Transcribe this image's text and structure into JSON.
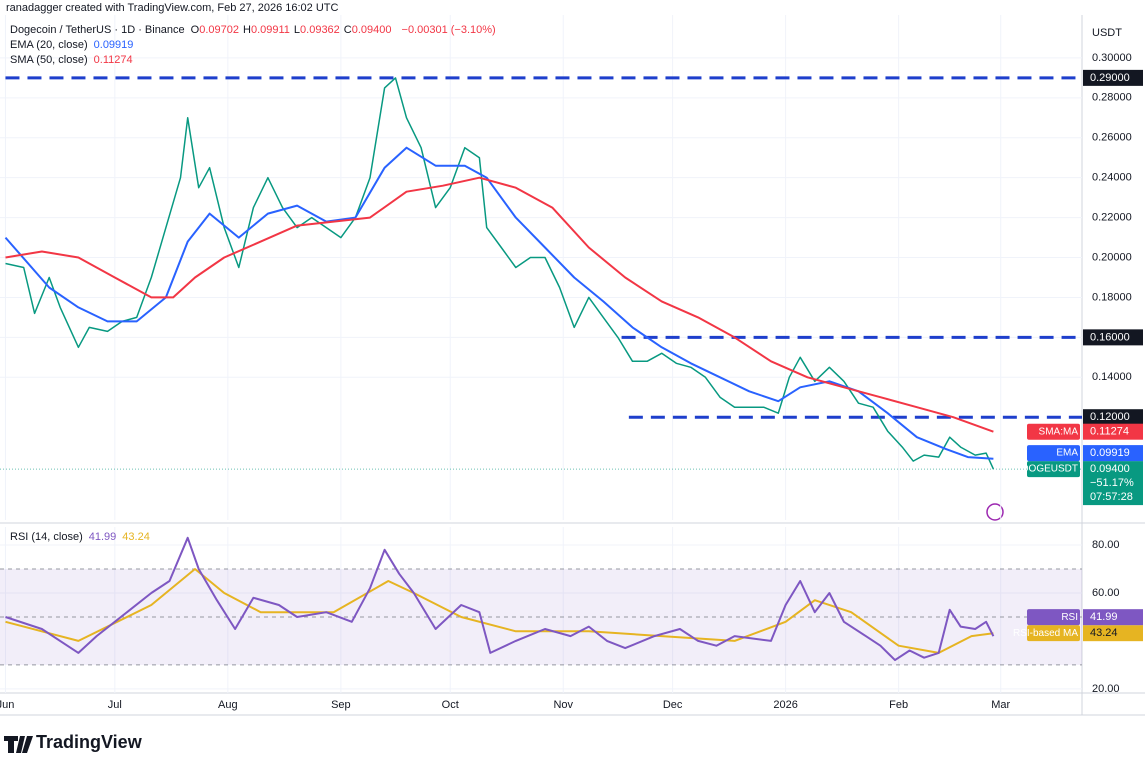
{
  "credit": "ranadagger created with TradingView.com, Feb 27, 2026 16:02 UTC",
  "brand": "TradingView",
  "header": {
    "title": "Dogecoin / TetherUS · 1D · Binance",
    "ohlc": [
      {
        "key": "O",
        "value": "0.09702"
      },
      {
        "key": "H",
        "value": "0.09911"
      },
      {
        "key": "L",
        "value": "0.09362"
      },
      {
        "key": "C",
        "value": "0.09400"
      }
    ],
    "change": "−0.00301 (−3.10%)",
    "indicators": [
      {
        "label": "EMA (20, close)",
        "value": "0.09919",
        "color": "#2962ff"
      },
      {
        "label": "SMA (50, close)",
        "value": "0.11274",
        "color": "#f23645"
      }
    ]
  },
  "rsi_header": {
    "label": "RSI (14, close)",
    "values": [
      {
        "value": "41.99",
        "color": "#7e57c2"
      },
      {
        "value": "43.24",
        "color": "#e6b422"
      }
    ]
  },
  "chart_data": [
    {
      "type": "line",
      "unit": "USDT",
      "xlim": [
        -1.5,
        295.3
      ],
      "ylim": [
        0.0685,
        0.3215
      ],
      "yticks": [
        {
          "value": 0.14,
          "label": "0.14000"
        },
        {
          "value": 0.16,
          "label": "0.16000"
        },
        {
          "value": 0.18,
          "label": "0.18000"
        },
        {
          "value": 0.2,
          "label": "0.20000"
        },
        {
          "value": 0.22,
          "label": "0.22000"
        },
        {
          "value": 0.24,
          "label": "0.24000"
        },
        {
          "value": 0.26,
          "label": "0.26000"
        },
        {
          "value": 0.28,
          "label": "0.28000"
        },
        {
          "value": 0.3,
          "label": "0.30000"
        }
      ],
      "levels": [
        {
          "value": 0.29,
          "label": "0.29000",
          "start": 0
        },
        {
          "value": 0.16,
          "label": "0.16000",
          "start": 169
        },
        {
          "value": 0.12,
          "label": "0.12000",
          "start": 171
        }
      ],
      "series": [
        {
          "name": "DOGEUSDT",
          "color": "#089981",
          "last_label": "0.09400",
          "change": "−51.17%",
          "countdown": "07:57:28",
          "x": [
            0,
            5,
            8,
            12,
            15,
            20,
            23,
            28,
            32,
            36,
            40,
            44,
            48,
            50,
            53,
            56,
            60,
            64,
            68,
            72,
            76,
            80,
            84,
            88,
            92,
            96,
            100,
            104,
            107,
            110,
            114,
            118,
            122,
            126,
            130,
            132,
            136,
            140,
            144,
            148,
            152,
            156,
            160,
            164,
            168,
            172,
            176,
            180,
            184,
            188,
            192,
            196,
            200,
            204,
            208,
            212,
            215,
            218,
            222,
            226,
            230,
            234,
            238,
            242,
            246,
            249,
            252,
            256,
            259,
            262,
            266,
            269,
            271
          ],
          "values": [
            0.197,
            0.195,
            0.172,
            0.19,
            0.175,
            0.155,
            0.165,
            0.163,
            0.168,
            0.17,
            0.19,
            0.215,
            0.24,
            0.27,
            0.235,
            0.245,
            0.215,
            0.195,
            0.225,
            0.24,
            0.225,
            0.215,
            0.22,
            0.215,
            0.21,
            0.22,
            0.24,
            0.285,
            0.29,
            0.27,
            0.255,
            0.225,
            0.235,
            0.255,
            0.25,
            0.215,
            0.205,
            0.195,
            0.2,
            0.2,
            0.185,
            0.165,
            0.18,
            0.17,
            0.16,
            0.148,
            0.148,
            0.152,
            0.147,
            0.145,
            0.14,
            0.13,
            0.125,
            0.125,
            0.125,
            0.122,
            0.14,
            0.15,
            0.138,
            0.145,
            0.138,
            0.127,
            0.125,
            0.113,
            0.105,
            0.098,
            0.101,
            0.1,
            0.11,
            0.105,
            0.101,
            0.102,
            0.094
          ]
        },
        {
          "name": "EMA",
          "color": "#2962ff",
          "last_label": "0.09919",
          "x": [
            0,
            12,
            20,
            28,
            36,
            44,
            50,
            56,
            64,
            72,
            80,
            88,
            96,
            104,
            110,
            118,
            126,
            132,
            140,
            148,
            156,
            164,
            172,
            180,
            188,
            196,
            204,
            212,
            218,
            226,
            234,
            242,
            250,
            258,
            264,
            271
          ],
          "values": [
            0.21,
            0.185,
            0.175,
            0.168,
            0.168,
            0.18,
            0.208,
            0.222,
            0.21,
            0.222,
            0.226,
            0.218,
            0.22,
            0.245,
            0.255,
            0.246,
            0.246,
            0.24,
            0.22,
            0.205,
            0.19,
            0.178,
            0.165,
            0.155,
            0.147,
            0.14,
            0.133,
            0.128,
            0.135,
            0.138,
            0.133,
            0.122,
            0.11,
            0.104,
            0.1,
            0.09919
          ]
        },
        {
          "name": "SMA:MA",
          "color": "#f23645",
          "last_label": "0.11274",
          "x": [
            0,
            10,
            20,
            30,
            40,
            46,
            52,
            60,
            70,
            80,
            90,
            100,
            110,
            120,
            130,
            140,
            150,
            160,
            170,
            180,
            190,
            200,
            210,
            220,
            230,
            240,
            250,
            260,
            271
          ],
          "values": [
            0.2,
            0.203,
            0.2,
            0.19,
            0.18,
            0.18,
            0.19,
            0.2,
            0.208,
            0.216,
            0.218,
            0.22,
            0.233,
            0.236,
            0.24,
            0.235,
            0.225,
            0.205,
            0.19,
            0.178,
            0.17,
            0.16,
            0.148,
            0.14,
            0.135,
            0.13,
            0.125,
            0.12,
            0.11274
          ]
        }
      ]
    },
    {
      "type": "line",
      "xlim": [
        -1.5,
        295.3
      ],
      "ylim": [
        18.3,
        87.5
      ],
      "yticks": [
        {
          "value": 20,
          "label": "20.00"
        },
        {
          "value": 60,
          "label": "60.00"
        },
        {
          "value": 80,
          "label": "80.00"
        }
      ],
      "xticks": [
        {
          "value": 0,
          "label": "Jun"
        },
        {
          "value": 30,
          "label": "Jul"
        },
        {
          "value": 61,
          "label": "Aug"
        },
        {
          "value": 92,
          "label": "Sep"
        },
        {
          "value": 122,
          "label": "Oct"
        },
        {
          "value": 153,
          "label": "Nov"
        },
        {
          "value": 183,
          "label": "Dec"
        },
        {
          "value": 214,
          "label": "2026"
        },
        {
          "value": 245,
          "label": "Feb"
        },
        {
          "value": 273,
          "label": "Mar"
        }
      ],
      "band": [
        30,
        70
      ],
      "levels": [
        70,
        50,
        30
      ],
      "series": [
        {
          "name": "RSI-based MA",
          "color": "#e6b422",
          "last_label": "43.24",
          "x": [
            0,
            20,
            40,
            52,
            60,
            70,
            90,
            105,
            112,
            125,
            140,
            160,
            180,
            200,
            214,
            222,
            232,
            245,
            256,
            265,
            271
          ],
          "values": [
            48,
            40,
            55,
            70,
            60,
            52,
            52,
            65,
            60,
            50,
            44,
            44,
            42,
            40,
            48,
            57,
            52,
            38,
            35,
            42,
            43.24
          ]
        },
        {
          "name": "RSI",
          "color": "#7e57c2",
          "last_label": "41.99",
          "x": [
            0,
            10,
            20,
            25,
            30,
            40,
            45,
            50,
            53,
            58,
            63,
            68,
            75,
            80,
            88,
            95,
            100,
            104,
            108,
            112,
            118,
            125,
            130,
            133,
            140,
            148,
            155,
            160,
            165,
            170,
            178,
            185,
            190,
            195,
            200,
            210,
            214,
            218,
            222,
            226,
            230,
            236,
            240,
            244,
            248,
            252,
            256,
            259,
            262,
            266,
            269,
            271
          ],
          "values": [
            50,
            45,
            35,
            42,
            48,
            60,
            65,
            83,
            70,
            57,
            45,
            58,
            55,
            50,
            52,
            48,
            62,
            78,
            68,
            60,
            45,
            55,
            52,
            35,
            40,
            45,
            42,
            46,
            40,
            37,
            42,
            45,
            40,
            38,
            42,
            40,
            55,
            65,
            52,
            60,
            48,
            42,
            38,
            32,
            36,
            33,
            35,
            53,
            46,
            45,
            48,
            41.99
          ]
        }
      ]
    }
  ]
}
